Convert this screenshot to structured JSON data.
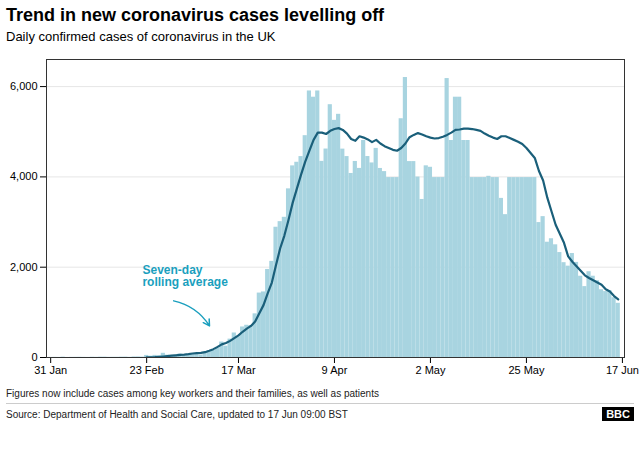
{
  "chart_data": {
    "type": "bar",
    "title": "Trend in new coronavirus cases levelling off",
    "subtitle": "Daily confirmed cases of coronavirus in the UK",
    "footnotes": [
      "Figures now include cases among key workers and their families, as well as patients",
      "Source: Department of Health and Social Care, updated to 17 Jun 09:00 BST"
    ],
    "logo": "BBC",
    "annotations": [
      {
        "text": "Seven-day\nrolling average",
        "color": "#1a9fbe"
      }
    ],
    "categories": [
      "31 Jan",
      null,
      null,
      null,
      null,
      null,
      null,
      null,
      null,
      null,
      null,
      null,
      null,
      null,
      null,
      null,
      null,
      null,
      null,
      null,
      null,
      null,
      null,
      "23 Feb",
      null,
      null,
      null,
      null,
      null,
      null,
      null,
      null,
      null,
      null,
      null,
      null,
      null,
      null,
      null,
      null,
      null,
      null,
      null,
      null,
      null,
      "17 Mar",
      null,
      null,
      null,
      null,
      null,
      null,
      null,
      null,
      null,
      null,
      null,
      null,
      null,
      null,
      null,
      null,
      null,
      null,
      null,
      null,
      null,
      null,
      "9 Apr",
      null,
      null,
      null,
      null,
      null,
      null,
      null,
      null,
      null,
      null,
      null,
      null,
      null,
      null,
      null,
      null,
      null,
      null,
      null,
      null,
      null,
      null,
      "2 May",
      null,
      null,
      null,
      null,
      null,
      null,
      null,
      null,
      null,
      null,
      null,
      null,
      null,
      null,
      null,
      null,
      null,
      null,
      null,
      null,
      null,
      null,
      "25 May",
      null,
      null,
      null,
      null,
      null,
      null,
      null,
      null,
      null,
      null,
      null,
      null,
      null,
      null,
      null,
      null,
      null,
      null,
      null,
      null,
      null,
      null,
      "17 Jun"
    ],
    "series": [
      {
        "type": "bar",
        "color": "#a8d4e0",
        "values": [
          2,
          3,
          2,
          8,
          1,
          3,
          4,
          5,
          3,
          2,
          6,
          4,
          8,
          8,
          4,
          5,
          5,
          8,
          9,
          4,
          12,
          13,
          9,
          46,
          29,
          47,
          36,
          93,
          52,
          48,
          53,
          77,
          46,
          71,
          85,
          87,
          56,
          116,
          152,
          152,
          208,
          342,
          251,
          407,
          543,
          460,
          676,
          714,
          708,
          967,
          1427,
          1452,
          1950,
          2129,
          2885,
          3009,
          3105,
          3735,
          4244,
          4324,
          4450,
          4913,
          5903,
          5765,
          5903,
          4344,
          4617,
          5599,
          5252,
          5386,
          4615,
          4450,
          4076,
          4342,
          4188,
          4806,
          4451,
          4309,
          4631,
          4187,
          4117,
          3985,
          3985,
          3985,
          5288,
          6201,
          4339,
          4339,
          3996,
          3500,
          4245,
          4213,
          3985,
          3985,
          3985,
          6178,
          4806,
          5765,
          5765,
          4806,
          4806,
          3985,
          3985,
          3985,
          3985,
          4013,
          3985,
          3985,
          3524,
          3164,
          3985,
          3984,
          3984,
          3985,
          3985,
          3985,
          3985,
          2988,
          3120,
          2553,
          2630,
          2496,
          2324,
          2100,
          2023,
          2303,
          2106,
          1800,
          1570,
          1900,
          1800,
          1700,
          1500,
          1460,
          1480,
          1324,
          1200,
          null
        ]
      },
      {
        "type": "line",
        "color": "#1a5f7a",
        "values": [
          null,
          null,
          null,
          null,
          null,
          null,
          null,
          null,
          null,
          null,
          null,
          null,
          null,
          null,
          null,
          null,
          null,
          null,
          null,
          null,
          null,
          null,
          null,
          3,
          5,
          8,
          14,
          22,
          32,
          40,
          48,
          58,
          64,
          74,
          88,
          98,
          102,
          118,
          148,
          185,
          235,
          290,
          320,
          368,
          430,
          490,
          570,
          640,
          700,
          800,
          980,
          1160,
          1420,
          1660,
          2050,
          2420,
          2700,
          3050,
          3430,
          3740,
          4050,
          4340,
          4580,
          4820,
          4980,
          4980,
          4950,
          5020,
          5060,
          5080,
          5040,
          4960,
          4840,
          4800,
          4900,
          4870,
          4830,
          4770,
          4820,
          4740,
          4680,
          4640,
          4600,
          4580,
          4640,
          4740,
          4880,
          4930,
          4970,
          4940,
          4900,
          4870,
          4850,
          4860,
          4890,
          4930,
          4980,
          5040,
          5050,
          5070,
          5070,
          5060,
          5040,
          5020,
          4960,
          4910,
          4870,
          4840,
          4900,
          4900,
          4860,
          4820,
          4780,
          4730,
          4640,
          4530,
          4420,
          4130,
          3920,
          3540,
          3240,
          2940,
          2740,
          2540,
          2240,
          2120,
          2020,
          1920,
          1820,
          1760,
          1710,
          1660,
          1610,
          1510,
          1460,
          1360,
          1290,
          null
        ]
      }
    ],
    "ylim": [
      0,
      6600
    ],
    "yticks": [
      0,
      {
        "value": 2000,
        "label": "2,000"
      },
      {
        "value": 4000,
        "label": "4,000"
      },
      {
        "value": 6000,
        "label": "6,000"
      }
    ],
    "grid": true
  }
}
